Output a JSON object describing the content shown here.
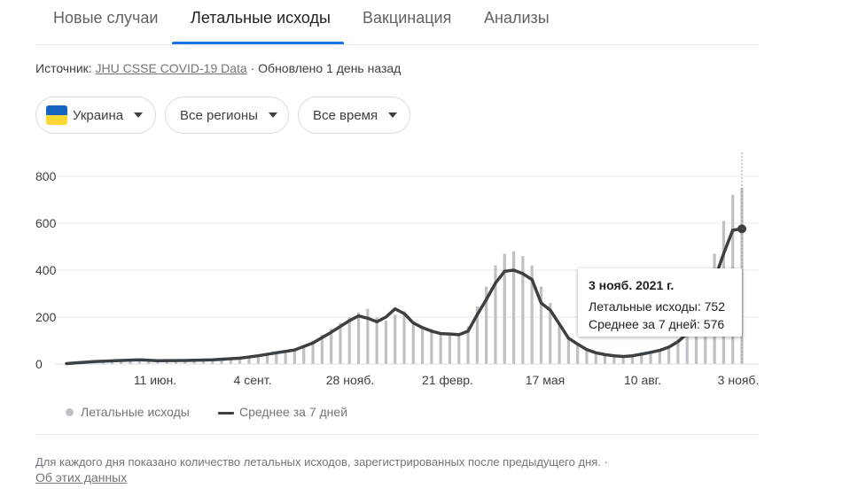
{
  "tabs": [
    {
      "label": "Новые случаи"
    },
    {
      "label": "Летальные исходы"
    },
    {
      "label": "Вакцинация"
    },
    {
      "label": "Анализы"
    }
  ],
  "active_tab": 1,
  "source": {
    "prefix": "Источник:",
    "link": "JHU CSSE COVID-19 Data",
    "updated": "· Обновлено 1 день назад"
  },
  "filters": {
    "country": "Украина",
    "region": "Все регионы",
    "period": "Все время"
  },
  "colors": {
    "bars": "#bdc1c6",
    "average_line": "#3c4043",
    "accent": "#1a73e8",
    "flag_blue": "#1565c0",
    "flag_yellow": "#fdd835"
  },
  "tooltip": {
    "title": "3 нояб. 2021 г.",
    "deaths": "Летальные исходы: 752",
    "average": "Среднее за 7 дней: 576"
  },
  "legend": {
    "deaths": "Летальные исходы",
    "average": "Среднее за 7 дней"
  },
  "footnote": "Для каждого дня показано количество летальных исходов, зарегистрированных после предыдущего дня.  ·",
  "about_link": "Об этих данных",
  "chart_data": {
    "type": "bar",
    "title": "",
    "xlabel": "",
    "ylabel": "",
    "ylim": [
      0,
      800
    ],
    "yticks": [
      0,
      200,
      400,
      600,
      800
    ],
    "xticks": [
      "11 июн.",
      "4 сент.",
      "28 нояб.",
      "21 февр.",
      "17 мая",
      "10 авг.",
      "3 нояб."
    ],
    "grid": true,
    "legend_position": "bottom-left",
    "series": [
      {
        "name": "Летальные исходы",
        "kind": "bar",
        "points": [
          [
            0,
            2
          ],
          [
            2,
            5
          ],
          [
            4,
            8
          ],
          [
            6,
            10
          ],
          [
            8,
            12
          ],
          [
            10,
            14
          ],
          [
            12,
            16
          ],
          [
            14,
            18
          ],
          [
            16,
            22
          ],
          [
            18,
            20
          ],
          [
            20,
            16
          ],
          [
            22,
            14
          ],
          [
            24,
            15
          ],
          [
            26,
            16
          ],
          [
            28,
            18
          ],
          [
            30,
            20
          ],
          [
            32,
            22
          ],
          [
            34,
            24
          ],
          [
            36,
            26
          ],
          [
            38,
            28
          ],
          [
            40,
            32
          ],
          [
            42,
            38
          ],
          [
            44,
            45
          ],
          [
            46,
            50
          ],
          [
            48,
            55
          ],
          [
            50,
            65
          ],
          [
            52,
            80
          ],
          [
            54,
            100
          ],
          [
            56,
            125
          ],
          [
            58,
            150
          ],
          [
            60,
            175
          ],
          [
            62,
            200
          ],
          [
            64,
            220
          ],
          [
            66,
            235
          ],
          [
            68,
            200
          ],
          [
            70,
            185
          ],
          [
            72,
            210
          ],
          [
            74,
            225
          ],
          [
            76,
            175
          ],
          [
            78,
            155
          ],
          [
            80,
            150
          ],
          [
            82,
            135
          ],
          [
            84,
            130
          ],
          [
            86,
            125
          ],
          [
            88,
            160
          ],
          [
            90,
            245
          ],
          [
            92,
            330
          ],
          [
            94,
            420
          ],
          [
            96,
            470
          ],
          [
            98,
            480
          ],
          [
            100,
            460
          ],
          [
            102,
            420
          ],
          [
            104,
            330
          ],
          [
            106,
            260
          ],
          [
            108,
            175
          ],
          [
            110,
            115
          ],
          [
            112,
            85
          ],
          [
            114,
            60
          ],
          [
            116,
            45
          ],
          [
            118,
            40
          ],
          [
            120,
            35
          ],
          [
            122,
            33
          ],
          [
            124,
            35
          ],
          [
            126,
            40
          ],
          [
            128,
            50
          ],
          [
            130,
            60
          ],
          [
            132,
            75
          ],
          [
            134,
            105
          ],
          [
            136,
            155
          ],
          [
            138,
            230
          ],
          [
            140,
            330
          ],
          [
            142,
            470
          ],
          [
            144,
            610
          ],
          [
            146,
            720
          ],
          [
            148,
            752
          ]
        ]
      },
      {
        "name": "Среднее за 7 дней",
        "kind": "line",
        "points": [
          [
            0,
            2
          ],
          [
            6,
            10
          ],
          [
            12,
            15
          ],
          [
            16,
            18
          ],
          [
            20,
            14
          ],
          [
            26,
            15
          ],
          [
            32,
            18
          ],
          [
            38,
            25
          ],
          [
            42,
            35
          ],
          [
            46,
            48
          ],
          [
            50,
            60
          ],
          [
            54,
            90
          ],
          [
            58,
            135
          ],
          [
            62,
            185
          ],
          [
            64,
            205
          ],
          [
            66,
            195
          ],
          [
            68,
            180
          ],
          [
            70,
            200
          ],
          [
            72,
            235
          ],
          [
            74,
            215
          ],
          [
            76,
            175
          ],
          [
            78,
            155
          ],
          [
            80,
            140
          ],
          [
            82,
            130
          ],
          [
            84,
            128
          ],
          [
            86,
            125
          ],
          [
            88,
            140
          ],
          [
            90,
            210
          ],
          [
            92,
            275
          ],
          [
            94,
            345
          ],
          [
            96,
            395
          ],
          [
            98,
            400
          ],
          [
            100,
            385
          ],
          [
            102,
            360
          ],
          [
            104,
            260
          ],
          [
            105,
            245
          ],
          [
            106,
            230
          ],
          [
            108,
            170
          ],
          [
            110,
            110
          ],
          [
            112,
            85
          ],
          [
            114,
            62
          ],
          [
            116,
            48
          ],
          [
            118,
            40
          ],
          [
            120,
            35
          ],
          [
            122,
            32
          ],
          [
            124,
            35
          ],
          [
            126,
            42
          ],
          [
            128,
            50
          ],
          [
            130,
            58
          ],
          [
            132,
            72
          ],
          [
            134,
            95
          ],
          [
            136,
            130
          ],
          [
            138,
            180
          ],
          [
            140,
            250
          ],
          [
            142,
            360
          ],
          [
            144,
            470
          ],
          [
            146,
            570
          ],
          [
            148,
            576
          ]
        ]
      }
    ]
  }
}
